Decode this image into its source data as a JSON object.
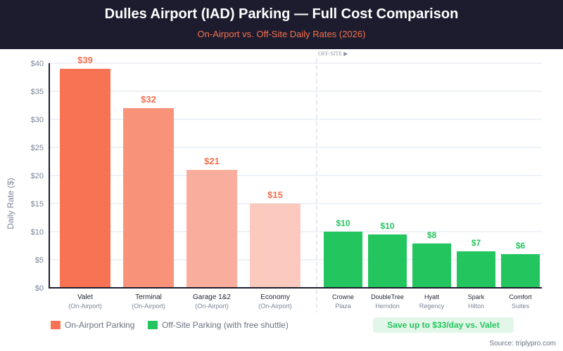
{
  "header": {
    "title": "Dulles Airport (IAD) Parking — Full Cost Comparison",
    "subtitle": "On-Airport vs. Off-Site Daily Rates (2026)"
  },
  "colors": {
    "header_bg": "#1c1c2e",
    "on_airport": [
      "#f77354",
      "#f8937a",
      "#f9ae9d",
      "#fbc9bd"
    ],
    "on_airport_label": "#f4704f",
    "off_site": "#22c55e"
  },
  "chart_data": {
    "type": "bar",
    "title": "Dulles Airport (IAD) Parking — Full Cost Comparison",
    "subtitle": "On-Airport vs. Off-Site Daily Rates (2026)",
    "xlabel": "",
    "ylabel": "Daily Rate ($)",
    "ylim": [
      0,
      40
    ],
    "yticks": [
      0,
      5,
      10,
      15,
      20,
      25,
      30,
      35,
      40
    ],
    "ytick_labels": [
      "$0",
      "$5",
      "$10",
      "$15",
      "$20",
      "$25",
      "$30",
      "$35",
      "$40"
    ],
    "grid": true,
    "separator_label": "OFF-SITE ▶",
    "categories": [
      {
        "name": "Valet",
        "sub": "(On-Airport)",
        "group": "on_airport",
        "value": 39,
        "label": "$39"
      },
      {
        "name": "Terminal",
        "sub": "(On-Airport)",
        "group": "on_airport",
        "value": 32,
        "label": "$32"
      },
      {
        "name": "Garage 1&2",
        "sub": "(On-Airport)",
        "group": "on_airport",
        "value": 21,
        "label": "$21"
      },
      {
        "name": "Economy",
        "sub": "(On-Airport)",
        "group": "on_airport",
        "value": 15,
        "label": "$15"
      },
      {
        "name": "Crowne",
        "sub": "Plaza",
        "group": "off_site",
        "value": 10,
        "label": "$10"
      },
      {
        "name": "DoubleTree",
        "sub": "Herndon",
        "group": "off_site",
        "value": 9.5,
        "label": "$10"
      },
      {
        "name": "Hyatt",
        "sub": "Regency",
        "group": "off_site",
        "value": 7.9,
        "label": "$8"
      },
      {
        "name": "Spark",
        "sub": "Hilton",
        "group": "off_site",
        "value": 6.5,
        "label": "$7"
      },
      {
        "name": "Comfort",
        "sub": "Suites",
        "group": "off_site",
        "value": 6,
        "label": "$6"
      }
    ],
    "legend": {
      "placement": "bottom-left",
      "entries": [
        "On-Airport Parking",
        "Off-Site Parking (with free shuttle)"
      ]
    },
    "annotation": "Save up to $33/day vs. Valet"
  },
  "footer": {
    "source": "Source: triplypro.com"
  }
}
